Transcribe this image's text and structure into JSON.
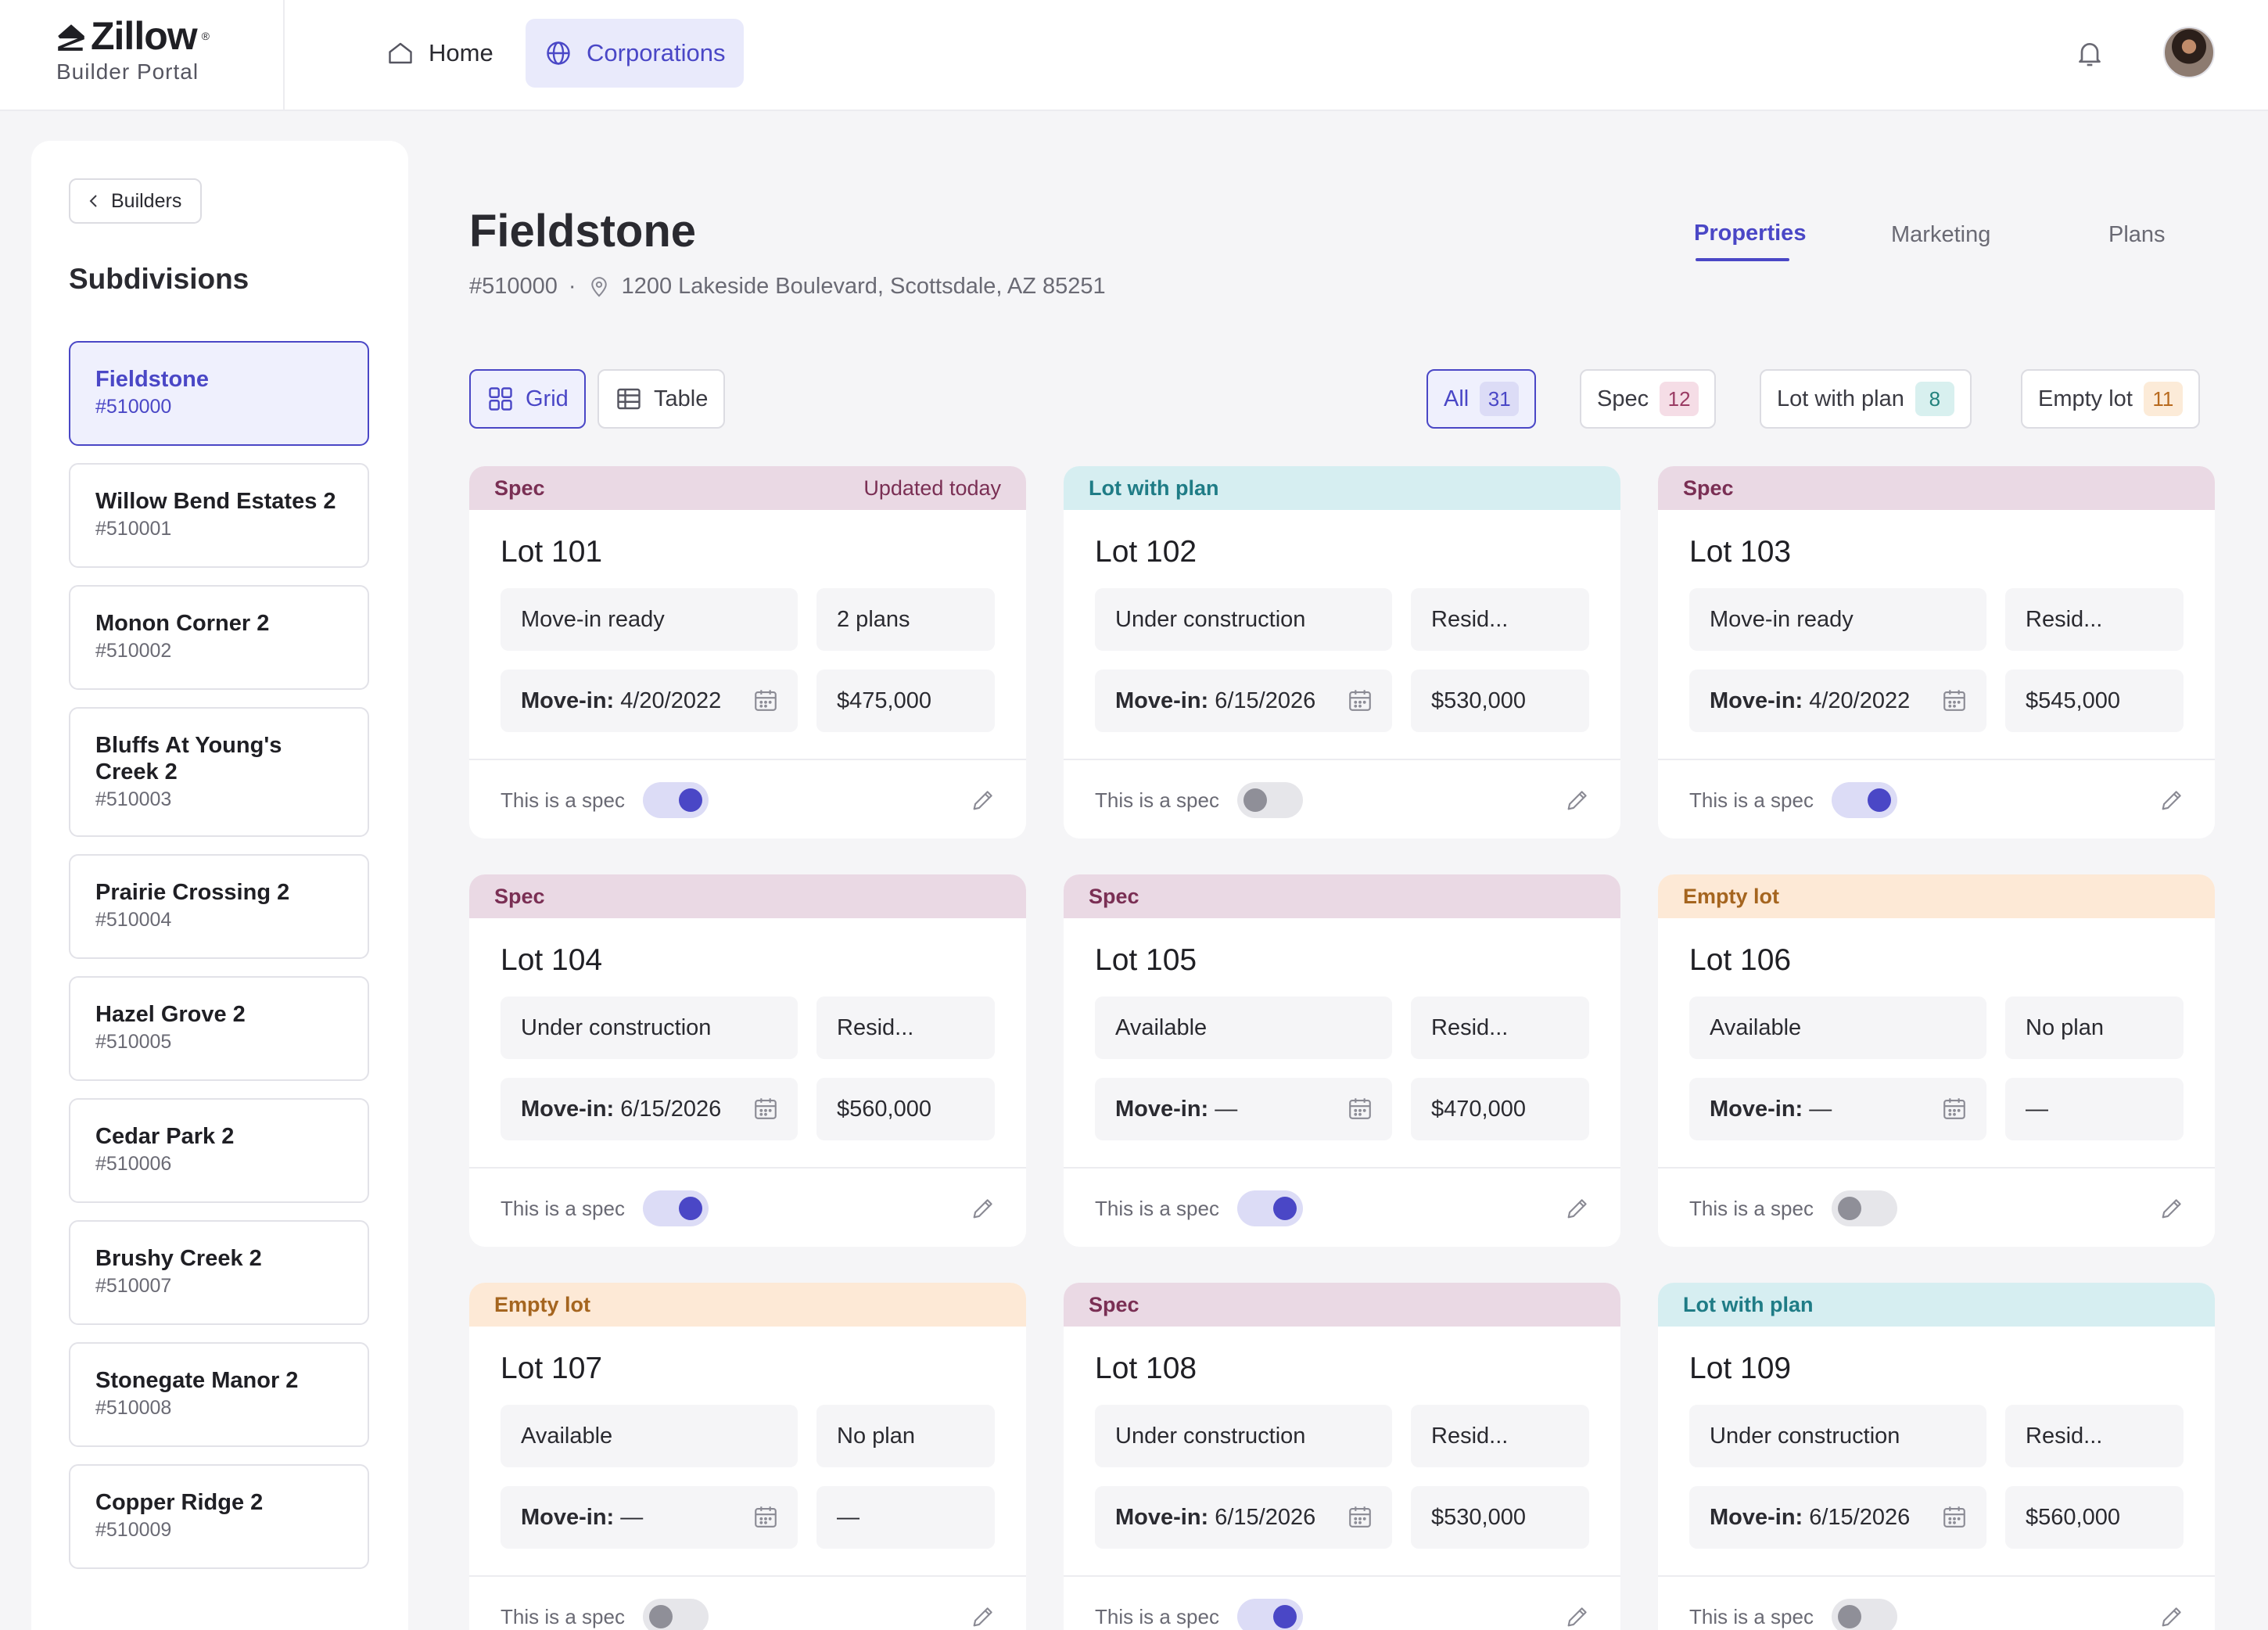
{
  "brand": {
    "name": "Zillow",
    "reg": "®",
    "sub": "Builder Portal"
  },
  "nav": {
    "home": "Home",
    "corporations": "Corporations"
  },
  "sidebar": {
    "back_label": "Builders",
    "title": "Subdivisions",
    "items": [
      {
        "name": "Fieldstone",
        "num": "#510000",
        "active": true
      },
      {
        "name": "Willow Bend Estates 2",
        "num": "#510001"
      },
      {
        "name": "Monon Corner 2",
        "num": "#510002"
      },
      {
        "name": "Bluffs At Young's Creek 2",
        "num": "#510003"
      },
      {
        "name": "Prairie Crossing 2",
        "num": "#510004"
      },
      {
        "name": "Hazel Grove 2",
        "num": "#510005"
      },
      {
        "name": "Cedar Park 2",
        "num": "#510006"
      },
      {
        "name": "Brushy Creek 2",
        "num": "#510007"
      },
      {
        "name": "Stonegate Manor 2",
        "num": "#510008"
      },
      {
        "name": "Copper Ridge 2",
        "num": "#510009"
      }
    ]
  },
  "header": {
    "title": "Fieldstone",
    "number": "#510000",
    "separator": "·",
    "address": "1200 Lakeside Boulevard, Scottsdale, AZ 85251"
  },
  "tabs": [
    "Properties",
    "Marketing",
    "Plans"
  ],
  "views": {
    "grid": "Grid",
    "table": "Table"
  },
  "filters": [
    {
      "label": "All",
      "count": "31"
    },
    {
      "label": "Spec",
      "count": "12"
    },
    {
      "label": "Lot with plan",
      "count": "8"
    },
    {
      "label": "Empty lot",
      "count": "11"
    }
  ],
  "card_common": {
    "move_in_label": "Move-in:",
    "spec_label": "This is a spec"
  },
  "cards": [
    {
      "type": "Spec",
      "updated": "Updated today",
      "title": "Lot 101",
      "status": "Move-in ready",
      "plan": "2 plans",
      "move_in": "4/20/2022",
      "price": "$475,000",
      "is_spec": true
    },
    {
      "type": "Lot with plan",
      "updated": "",
      "title": "Lot 102",
      "status": "Under construction",
      "plan": "Resid...",
      "move_in": "6/15/2026",
      "price": "$530,000",
      "is_spec": false
    },
    {
      "type": "Spec",
      "updated": "",
      "title": "Lot 103",
      "status": "Move-in ready",
      "plan": "Resid...",
      "move_in": "4/20/2022",
      "price": "$545,000",
      "is_spec": true
    },
    {
      "type": "Spec",
      "updated": "",
      "title": "Lot 104",
      "status": "Under construction",
      "plan": "Resid...",
      "move_in": "6/15/2026",
      "price": "$560,000",
      "is_spec": true
    },
    {
      "type": "Spec",
      "updated": "",
      "title": "Lot 105",
      "status": "Available",
      "plan": "Resid...",
      "move_in": "—",
      "price": "$470,000",
      "is_spec": true
    },
    {
      "type": "Empty lot",
      "updated": "",
      "title": "Lot 106",
      "status": "Available",
      "plan": "No plan",
      "move_in": "—",
      "price": "—",
      "is_spec": false
    },
    {
      "type": "Empty lot",
      "updated": "",
      "title": "Lot 107",
      "status": "Available",
      "plan": "No plan",
      "move_in": "—",
      "price": "—",
      "is_spec": false
    },
    {
      "type": "Spec",
      "updated": "",
      "title": "Lot 108",
      "status": "Under construction",
      "plan": "Resid...",
      "move_in": "6/15/2026",
      "price": "$530,000",
      "is_spec": true
    },
    {
      "type": "Lot with plan",
      "updated": "",
      "title": "Lot 109",
      "status": "Under construction",
      "plan": "Resid...",
      "move_in": "6/15/2026",
      "price": "$560,000",
      "is_spec": false
    }
  ],
  "colors": {
    "accent": "#4a47c6",
    "spec_head": "#ead9e4",
    "lot_with_plan_head": "#d6eef1",
    "empty_lot_head": "#fde9d6"
  }
}
